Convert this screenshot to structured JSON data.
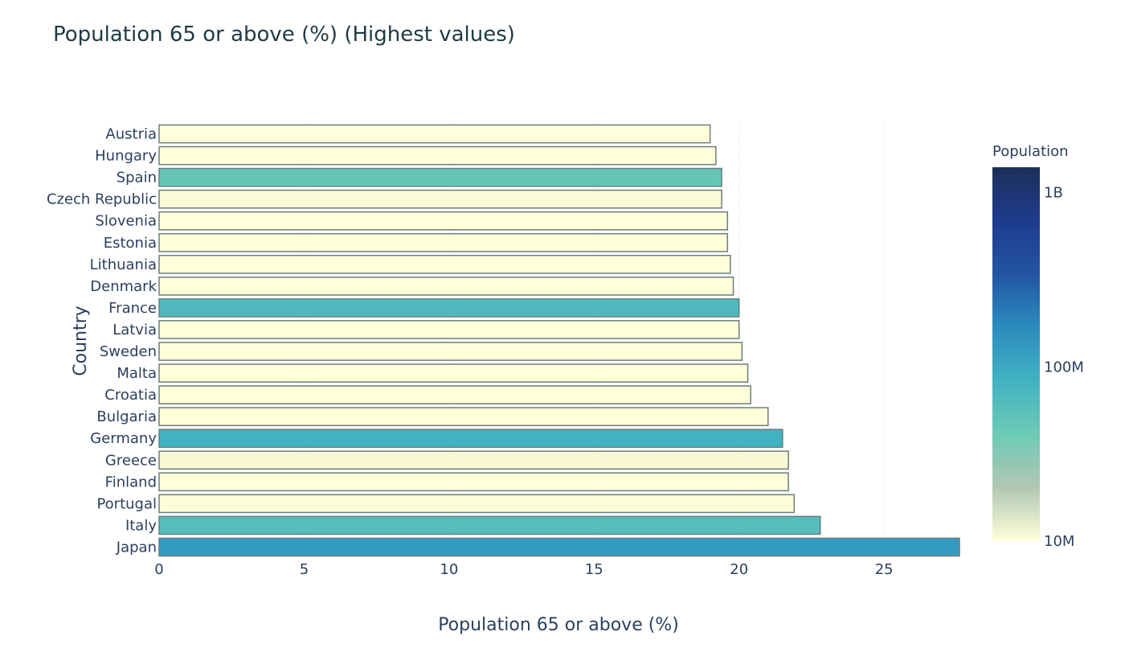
{
  "chart_data": {
    "type": "bar",
    "orientation": "horizontal",
    "title": "Population 65 or above (%) (Highest values)",
    "xlabel": "Population 65 or above (%)",
    "ylabel": "Country",
    "xlim": [
      0,
      27.6
    ],
    "xticks": [
      0,
      5,
      10,
      15,
      20,
      25
    ],
    "grid": true,
    "categories": [
      "Austria",
      "Hungary",
      "Spain",
      "Czech Republic",
      "Slovenia",
      "Estonia",
      "Lithuania",
      "Denmark",
      "France",
      "Latvia",
      "Sweden",
      "Malta",
      "Croatia",
      "Bulgaria",
      "Germany",
      "Greece",
      "Finland",
      "Portugal",
      "Italy",
      "Japan"
    ],
    "values": [
      19.0,
      19.2,
      19.4,
      19.4,
      19.6,
      19.6,
      19.7,
      19.8,
      20.0,
      20.0,
      20.1,
      20.3,
      20.4,
      21.0,
      21.5,
      21.7,
      21.7,
      21.9,
      22.8,
      27.6
    ],
    "color_values": [
      8.8,
      9.8,
      46.6,
      10.6,
      2.1,
      1.3,
      2.9,
      5.7,
      66.9,
      2.0,
      9.9,
      0.44,
      4.2,
      7.1,
      82.7,
      10.7,
      5.5,
      10.3,
      60.6,
      126.9
    ],
    "colorbar": {
      "title": "Population",
      "tick_labels": [
        "1B",
        "100M",
        "10M"
      ],
      "tick_values_millions": [
        1000,
        100,
        10
      ],
      "range_millions": [
        10,
        1400
      ],
      "scale": "log",
      "colorscale": [
        "#ffffd9",
        "#b1c7b4",
        "#6dcab5",
        "#41b2c2",
        "#2b8cbe",
        "#2255a3",
        "#1f3b8e",
        "#1c2f58"
      ]
    }
  }
}
